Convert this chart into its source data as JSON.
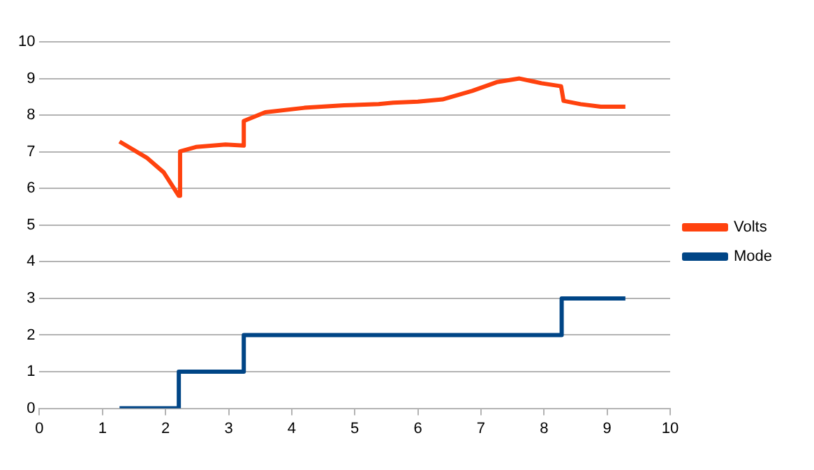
{
  "chart_data": {
    "type": "line",
    "xlim": [
      0,
      10
    ],
    "xticks": [
      0,
      1,
      2,
      3,
      4,
      5,
      6,
      7,
      8,
      9,
      10
    ],
    "ylim": [
      0,
      10
    ],
    "yticks": [
      0,
      1,
      2,
      3,
      4,
      5,
      6,
      7,
      8,
      9,
      10
    ],
    "grid": "y",
    "legend": "right",
    "marker": "none",
    "series": [
      {
        "name": "Volts",
        "color": "#ff420e",
        "x": [
          1.27,
          1.7,
          1.97,
          2.21,
          2.23,
          2.48,
          2.95,
          3.24,
          3.24,
          3.58,
          4.2,
          4.83,
          5.38,
          5.61,
          6.0,
          6.39,
          6.86,
          7.25,
          7.61,
          7.96,
          8.27,
          8.31,
          8.58,
          8.9,
          9.29
        ],
        "values": [
          7.28,
          6.84,
          6.44,
          5.8,
          7.01,
          7.13,
          7.2,
          7.17,
          7.84,
          8.08,
          8.2,
          8.27,
          8.3,
          8.34,
          8.37,
          8.43,
          8.66,
          8.9,
          9.0,
          8.87,
          8.79,
          8.39,
          8.3,
          8.23,
          8.23
        ]
      },
      {
        "name": "Mode",
        "type": "step",
        "color": "#004586",
        "x": [
          1.27,
          2.21,
          3.24,
          8.28,
          9.29
        ],
        "values": [
          0,
          1,
          2,
          3,
          3
        ]
      }
    ]
  }
}
